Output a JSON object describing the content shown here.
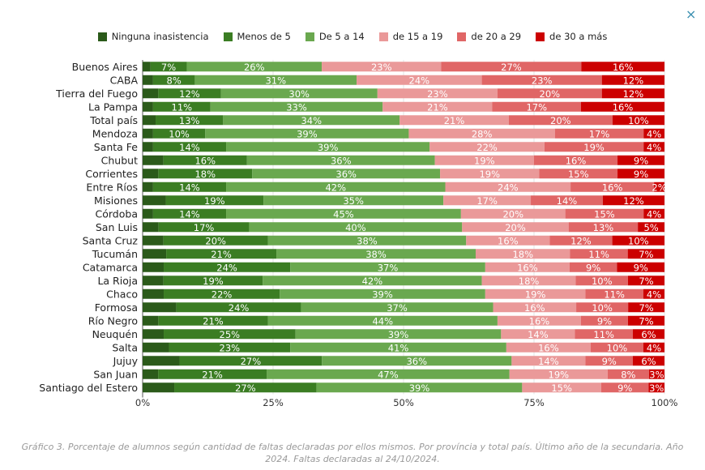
{
  "close_label": "×",
  "caption": "Gráfico 3. Porcentaje de alumnos según cantidad de faltas declaradas por ellos mismos. Por província y total país. Último año de la secundaria. Año 2024. Faltas declaradas al 24/10/2024.",
  "chart_data": {
    "type": "bar",
    "orientation": "horizontal",
    "stacked": "percent",
    "legend_position": "top",
    "grid": true,
    "xlim": [
      0,
      100
    ],
    "x_ticks": [
      "0%",
      "25%",
      "50%",
      "75%",
      "100%"
    ],
    "categories": [
      "Buenos Aires",
      "CABA",
      "Tierra del Fuego",
      "La Pampa",
      "Total país",
      "Mendoza",
      "Santa Fe",
      "Chubut",
      "Corrientes",
      "Entre Ríos",
      "Misiones",
      "Córdoba",
      "San Luis",
      "Santa Cruz",
      "Tucumán",
      "Catamarca",
      "La Rioja",
      "Chaco",
      "Formosa",
      "Río Negro",
      "Neuquén",
      "Salta",
      "Jujuy",
      "San Juan",
      "Santiago del Estero"
    ],
    "series": [
      {
        "name": "Ninguna inasistencia",
        "color": "#2b5a1a",
        "labeled": false,
        "values": [
          1.5,
          2,
          3,
          2,
          2.5,
          2,
          2,
          4,
          3,
          2,
          4.5,
          2,
          3,
          4,
          4.5,
          4,
          4,
          4,
          6.5,
          3,
          4,
          5,
          7,
          3,
          6
        ]
      },
      {
        "name": "Menos de 5",
        "color": "#3b7d23",
        "labeled": true,
        "values": [
          7,
          8,
          12,
          11,
          13,
          10,
          14,
          16,
          18,
          14,
          19,
          14,
          17,
          20,
          21,
          24,
          19,
          22,
          24,
          21,
          25,
          23,
          27,
          21,
          27
        ]
      },
      {
        "name": "De 5 a 14",
        "color": "#6aa84f",
        "labeled": true,
        "values": [
          26,
          31,
          30,
          33,
          34,
          39,
          39,
          36,
          36,
          42,
          35,
          45,
          40,
          38,
          38,
          37,
          42,
          39,
          37,
          44,
          39,
          41,
          36,
          47,
          39
        ]
      },
      {
        "name": "de 15 a 19",
        "color": "#ea9999",
        "labeled": true,
        "values": [
          23,
          24,
          23,
          21,
          21,
          28,
          22,
          19,
          19,
          24,
          17,
          20,
          20,
          16,
          18,
          16,
          18,
          19,
          16,
          16,
          14,
          16,
          14,
          19,
          15
        ]
      },
      {
        "name": "de 20 a 29",
        "color": "#e06666",
        "labeled": true,
        "values": [
          27,
          23,
          20,
          17,
          20,
          17,
          19,
          16,
          15,
          16,
          14,
          15,
          13,
          12,
          11,
          9,
          10,
          11,
          10,
          9,
          11,
          10,
          9,
          8,
          9
        ]
      },
      {
        "name": "de 30 a más",
        "color": "#cc0000",
        "labeled": true,
        "values": [
          16,
          12,
          12,
          16,
          10,
          4,
          4,
          9,
          9,
          2,
          12,
          4,
          5,
          10,
          7,
          9,
          7,
          4,
          7,
          7,
          6,
          4,
          6,
          3,
          3
        ]
      }
    ]
  }
}
